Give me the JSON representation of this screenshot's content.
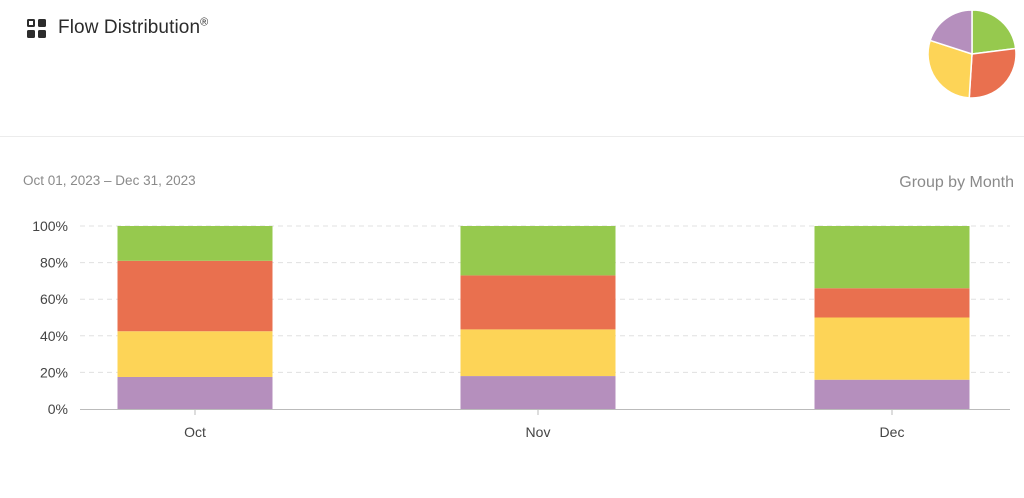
{
  "header": {
    "title": "Flow Distribution",
    "title_mark": "®",
    "icon": "dashboard-grid-icon"
  },
  "toolbar": {
    "date_range": "Oct 01, 2023 – Dec 31, 2023",
    "group_by_label": "Group by Month"
  },
  "colors": {
    "feature": "#96c94e",
    "defect": "#e9704f",
    "risk": "#fdd457",
    "debt": "#b58fbd",
    "gridline": "#e0e0e0",
    "axis": "#bbbbbb"
  },
  "chart_data": [
    {
      "type": "bar",
      "stacked": true,
      "percent": true,
      "categories": [
        "Oct",
        "Nov",
        "Dec"
      ],
      "series": [
        {
          "color_key": "debt",
          "values": [
            17.5,
            18,
            16
          ]
        },
        {
          "color_key": "risk",
          "values": [
            25,
            25.5,
            34
          ]
        },
        {
          "color_key": "defect",
          "values": [
            38.5,
            29.5,
            16
          ]
        },
        {
          "color_key": "feature",
          "values": [
            19,
            27,
            34
          ]
        }
      ],
      "ylim": [
        0,
        100
      ],
      "yticks": [
        0,
        20,
        40,
        60,
        80,
        100
      ],
      "ytick_labels": [
        "0%",
        "20%",
        "40%",
        "60%",
        "80%",
        "100%"
      ],
      "grid": true,
      "legend": "none"
    },
    {
      "type": "pie",
      "slices": [
        {
          "color_key": "feature",
          "value": 23
        },
        {
          "color_key": "defect",
          "value": 28
        },
        {
          "color_key": "risk",
          "value": 29
        },
        {
          "color_key": "debt",
          "value": 20
        }
      ]
    }
  ]
}
